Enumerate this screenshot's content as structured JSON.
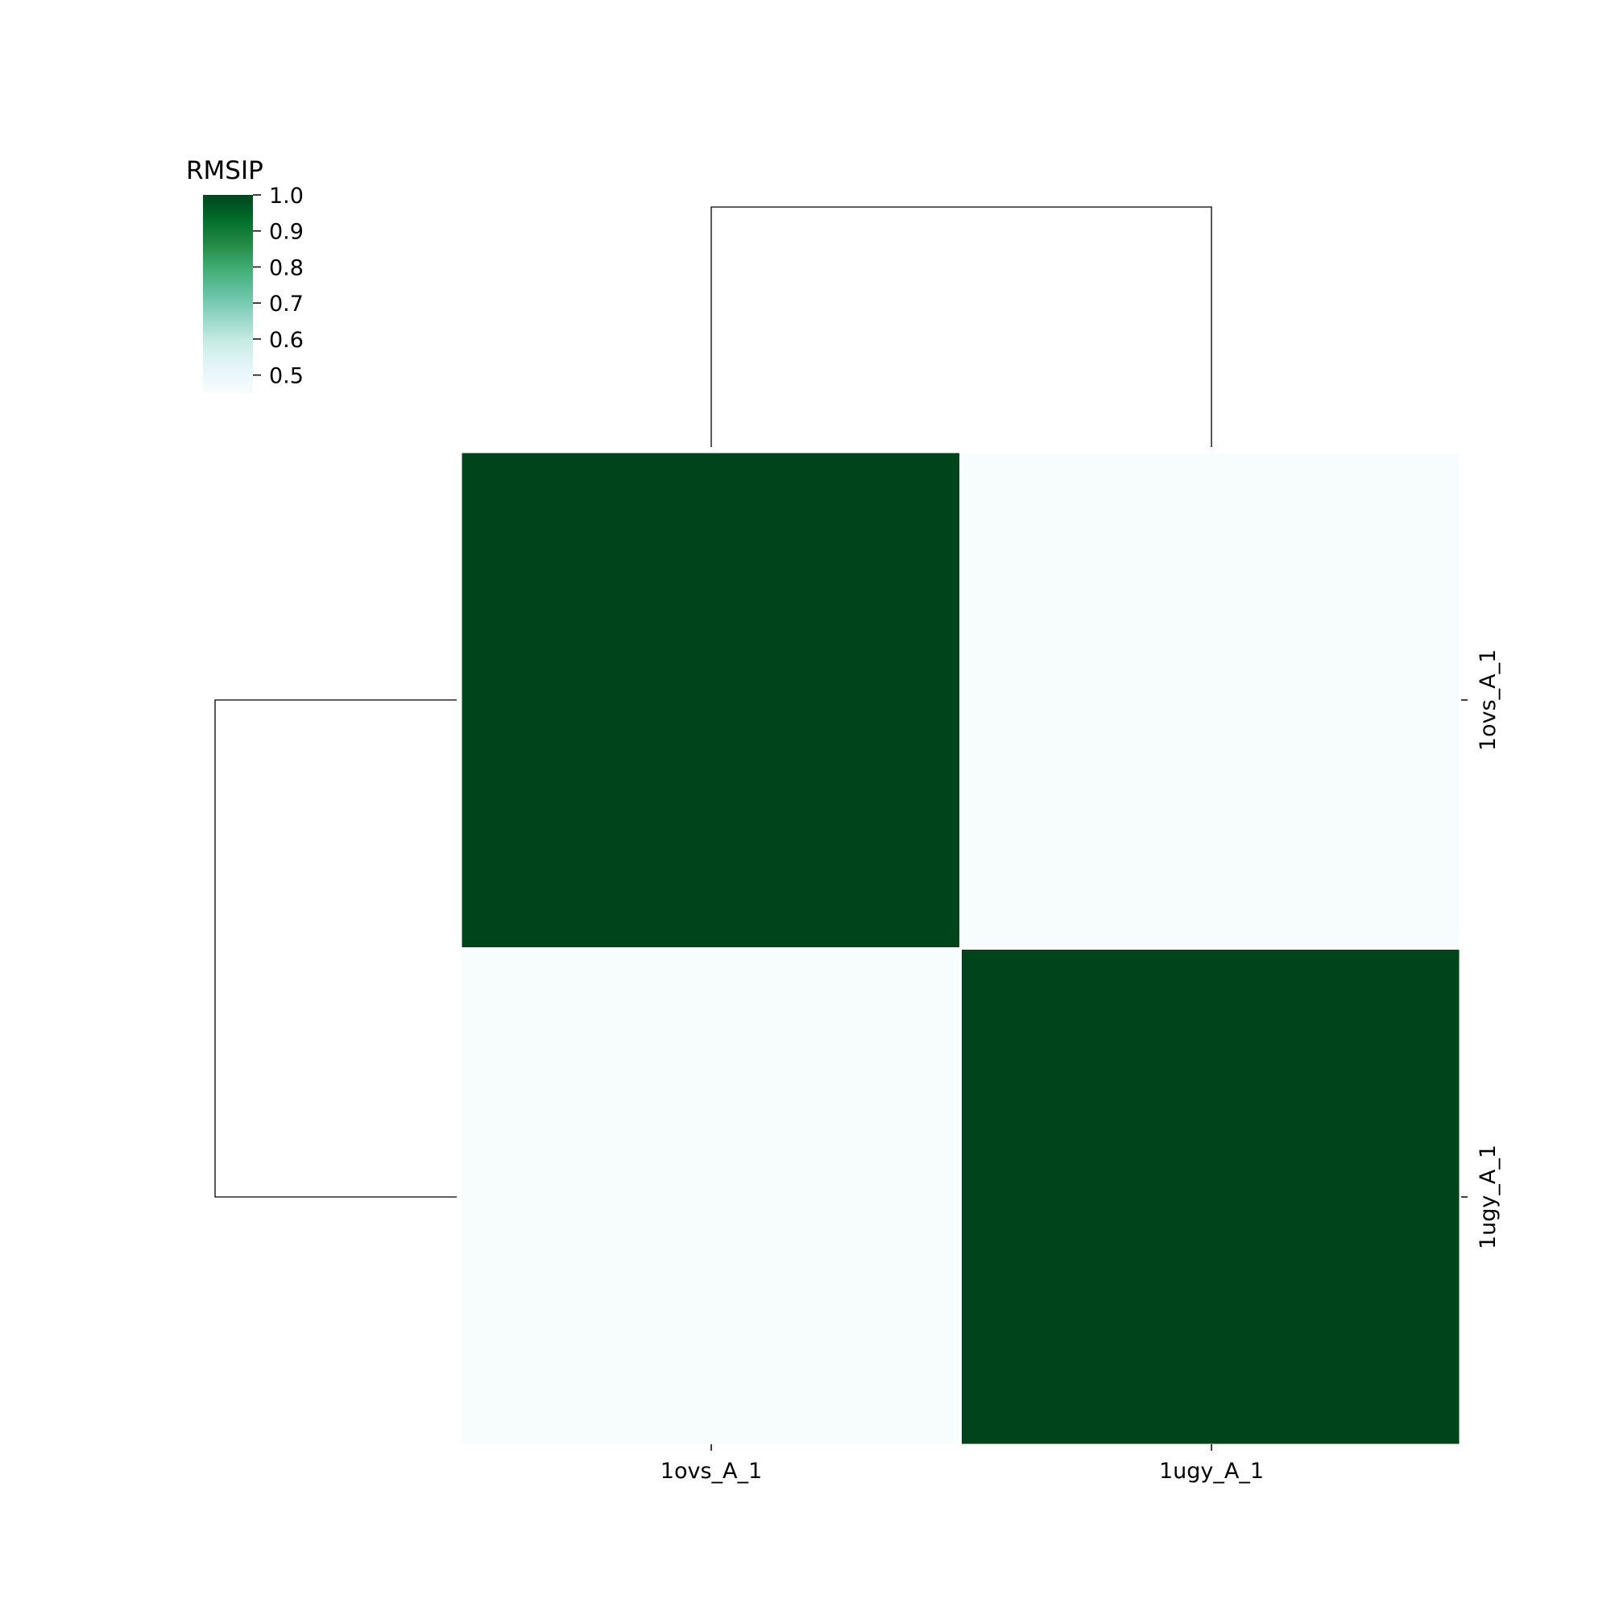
{
  "chart_data": {
    "type": "heatmap",
    "title": "",
    "xlabel": "",
    "ylabel": "",
    "x_categories": [
      "1ovs_A_1",
      "1ugy_A_1"
    ],
    "y_categories": [
      "1ovs_A_1",
      "1ugy_A_1"
    ],
    "values": [
      [
        1.0,
        0.45
      ],
      [
        0.45,
        1.0
      ]
    ],
    "colorbar": {
      "label": "RMSIP",
      "range": [
        0.45,
        1.0
      ],
      "ticks": [
        1.0,
        0.9,
        0.8,
        0.7,
        0.6,
        0.5
      ],
      "tick_labels": [
        "1.0",
        "0.9",
        "0.8",
        "0.7",
        "0.6",
        "0.5"
      ],
      "colormap": [
        "#f7fcfd",
        "#e5f5f9",
        "#ccece6",
        "#99d8c9",
        "#66c2a4",
        "#41ae76",
        "#238b45",
        "#006d2c",
        "#00441b"
      ]
    },
    "row_dendrogram": true,
    "col_dendrogram": true,
    "grid": false,
    "legend_position": "top-left"
  }
}
